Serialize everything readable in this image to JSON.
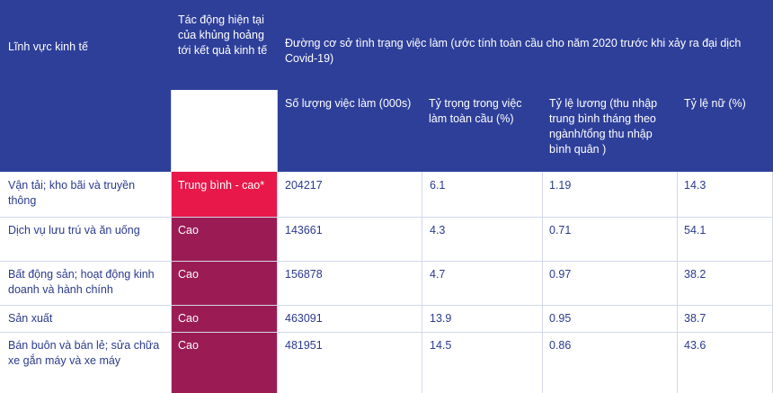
{
  "header": {
    "sector": "Lĩnh vực kinh tế",
    "impact": "Tác động hiện tại của khủng hoảng tới kết quả kinh tế",
    "baseline": "Đường cơ sở tình trạng việc làm (ước tính toàn cầu cho năm 2020 trước khi xảy ra đại dịch Covid-19)",
    "jobs": "Số lượng việc làm (000s)",
    "share": "Tỷ trọng trong việc làm toàn cầu (%)",
    "wage": "Tỷ lệ lương (thu nhập trung bình tháng theo ngành/tổng thu nhập bình quân )",
    "female": "Tỷ lệ nữ (%)"
  },
  "rows": [
    {
      "sector": "Vận tải; kho bãi và truyền thông",
      "impact": "Trung bình - cao*",
      "jobs": "204217",
      "share": "6.1",
      "wage": "1.19",
      "female": "14.3"
    },
    {
      "sector": "Dịch vụ lưu trú và ăn uống",
      "impact": "Cao",
      "jobs": "143661",
      "share": "4.3",
      "wage": "0.71",
      "female": "54.1"
    },
    {
      "sector": "Bất động sản; hoạt động kinh doanh và hành chính",
      "impact": "Cao",
      "jobs": "156878",
      "share": "4.7",
      "wage": "0.97",
      "female": "38.2"
    },
    {
      "sector": "Sản xuất",
      "impact": "Cao",
      "jobs": "463091",
      "share": "13.9",
      "wage": "0.95",
      "female": "38.7"
    },
    {
      "sector": "Bán buôn và bán lẻ; sửa chữa xe gắn máy và xe máy",
      "impact": "Cao",
      "jobs": "481951",
      "share": "14.5",
      "wage": "0.86",
      "female": "43.6"
    }
  ],
  "colors": {
    "header_blue": "#2e3f9a",
    "text_blue": "#2b3a8c",
    "impact_medium_high": "#e8184a",
    "impact_high": "#9b1c55"
  }
}
